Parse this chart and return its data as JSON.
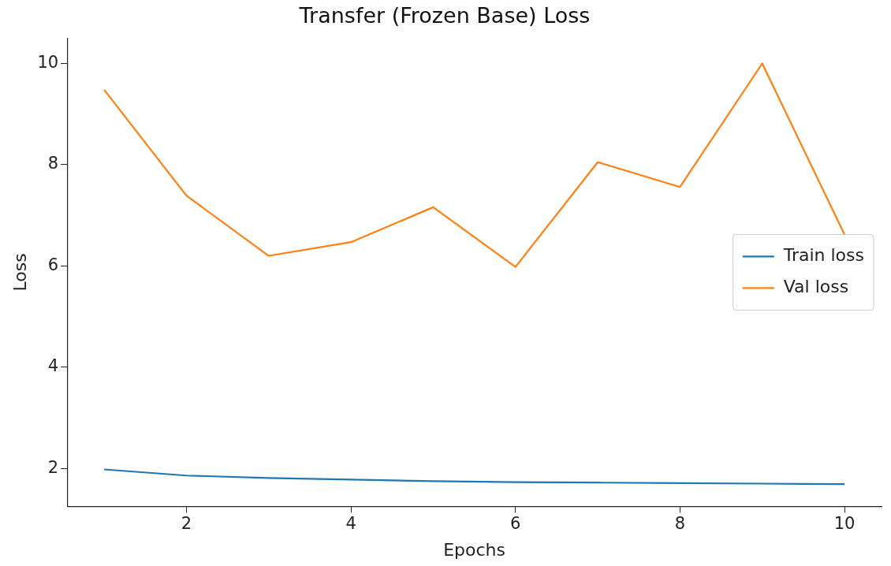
{
  "chart_data": {
    "type": "line",
    "title": "Transfer (Frozen Base) Loss",
    "xlabel": "Epochs",
    "ylabel": "Loss",
    "x": [
      1,
      2,
      3,
      4,
      5,
      6,
      7,
      8,
      9,
      10
    ],
    "series": [
      {
        "name": "Train loss",
        "color": "#1f77b4",
        "values": [
          1.98,
          1.86,
          1.81,
          1.78,
          1.75,
          1.73,
          1.72,
          1.71,
          1.7,
          1.69
        ]
      },
      {
        "name": "Val loss",
        "color": "#ff7f0e",
        "values": [
          9.48,
          7.39,
          6.2,
          6.47,
          7.16,
          5.98,
          8.05,
          7.56,
          10.0,
          6.62
        ]
      }
    ],
    "xlim": [
      0.55,
      10.45
    ],
    "xticks": [
      2,
      4,
      6,
      8,
      10
    ],
    "ylim": [
      1.25,
      10.5
    ],
    "yticks": [
      2,
      4,
      6,
      8,
      10
    ],
    "grid": false,
    "legend": "right",
    "marker": "none",
    "line_style": "solid"
  }
}
